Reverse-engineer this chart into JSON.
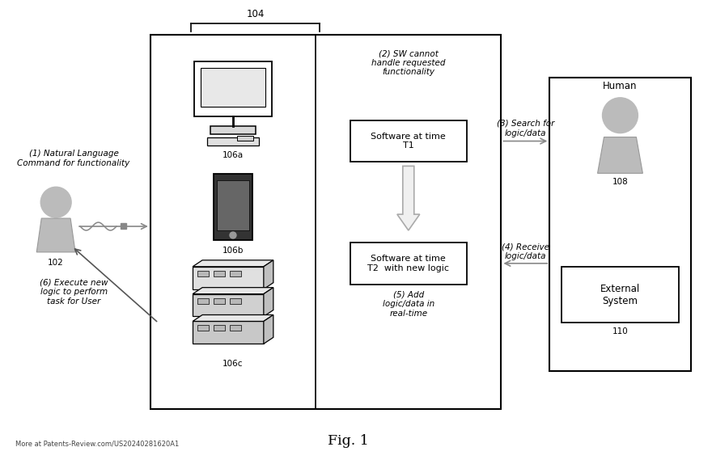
{
  "bg_color": "#ffffff",
  "fig_width": 8.8,
  "fig_height": 5.74,
  "title": "Fig. 1",
  "footer": "More at Patents-Review.com/US20240281620A1",
  "label_104": "104",
  "label_102": "102",
  "label_106a": "106a",
  "label_106b": "106b",
  "label_106c": "106c",
  "label_108": "108",
  "label_110": "110",
  "text_1": "(1) Natural Language\nCommand for functionality",
  "text_2": "(2) SW cannot\nhandle requested\nfunctionality",
  "text_3": "(3) Search for\nlogic/data",
  "text_4": "(4) Receive\nlogic/data",
  "text_5": "(5) Add\nlogic/data in\nreal-time",
  "text_6": "(6) Execute new\nlogic to perform\ntask for User",
  "sw_t1": "Software at time\nT1",
  "sw_t2": "Software at time\nT2  with new logic",
  "human_label": "Human",
  "external_label": "External\nSystem",
  "text_color": "#000000",
  "gray_color": "#aaaaaa",
  "font_size": 7.5
}
